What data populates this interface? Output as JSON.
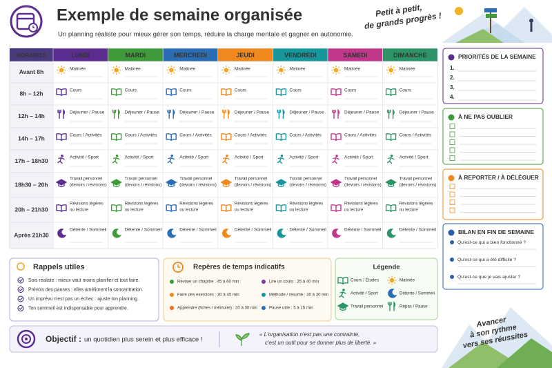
{
  "header": {
    "title": "Exemple de semaine organisée",
    "subtitle": "Un planning réaliste pour mieux gérer son temps, réduire la charge mentale et gagner en autonomie.",
    "slogan": [
      "Petit à petit,",
      "de grands progrès !"
    ]
  },
  "schedule": {
    "corner": "HORAIRES",
    "days": [
      {
        "name": "LUNDI",
        "color": "#5c2d91"
      },
      {
        "name": "MARDI",
        "color": "#3f9b3a"
      },
      {
        "name": "MERCREDI",
        "color": "#2b6db5"
      },
      {
        "name": "JEUDI",
        "color": "#f0891d"
      },
      {
        "name": "VENDREDI",
        "color": "#17979c"
      },
      {
        "name": "SAMEDI",
        "color": "#c1378b"
      },
      {
        "name": "DIMANCHE",
        "color": "#2c9467"
      }
    ],
    "rows": [
      {
        "time": "Avant 8h",
        "icon": "sun",
        "cells": [
          "Matinée",
          "Matinée",
          "Matinée",
          "Matinée",
          "Matinée",
          "Matinée",
          "Matinée"
        ]
      },
      {
        "time": "8h – 12h",
        "icon": "book",
        "cells": [
          "Cours",
          "Cours",
          "Cours",
          "Cours",
          "Cours",
          "Cours",
          "Cours"
        ]
      },
      {
        "time": "12h – 14h",
        "icon": "fork",
        "cells": [
          "Déjeuner / Pause",
          "Déjeuner / Pause",
          "Déjeuner / Pause",
          "Déjeuner / Pause",
          "Déjeuner / Pause",
          "Déjeuner / Pause",
          "Déjeuner / Pause"
        ]
      },
      {
        "time": "14h – 17h",
        "icon": "book",
        "cells": [
          "Cours / Activités",
          "Cours / Activités",
          "Cours / Activités",
          "Cours / Activités",
          "Cours / Activités",
          "Cours / Activités",
          "Cours / Activités"
        ]
      },
      {
        "time": "17h – 18h30",
        "icon": "runner",
        "cells": [
          "Activité / Sport",
          "Activité / Sport",
          "Activité / Sport",
          "Activité / Sport",
          "Activité / Sport",
          "Activité / Sport",
          "Activité / Sport"
        ]
      },
      {
        "time": "18h30 – 20h",
        "icon": "cap",
        "cells": [
          [
            "Travail personnel",
            "(devoirs / révisions)"
          ],
          [
            "Travail personnel",
            "(devoirs / révisions)"
          ],
          [
            "Travail personnel",
            "(devoirs / révisions)"
          ],
          [
            "Travail personnel",
            "(devoirs / révisions)"
          ],
          [
            "Travail personnel",
            "(devoirs / révisions)"
          ],
          [
            "Travail personnel",
            "(devoirs / révisions)"
          ],
          [
            "Travail personnel",
            "(devoirs / révisions)"
          ]
        ]
      },
      {
        "time": "20h – 21h30",
        "icon": "book",
        "cells": [
          [
            "Révisions légères",
            "ou lecture"
          ],
          [
            "Révisions légères",
            "ou lecture"
          ],
          [
            "Révisions légères",
            "ou lecture"
          ],
          [
            "Révisions légères",
            "ou lecture"
          ],
          [
            "Révisions légères",
            "ou lecture"
          ],
          [
            "Révisions légères",
            "ou lecture"
          ],
          [
            "Révisions légères",
            "ou lecture"
          ]
        ]
      },
      {
        "time": "Après 21h30",
        "icon": "moon",
        "cells": [
          "Détente / Sommeil",
          "Détente / Sommeil",
          "Détente / Sommeil",
          "Détente / Sommeil",
          "Détente / Sommeil",
          "Détente / Sommeil",
          "Détente / Sommeil"
        ]
      }
    ]
  },
  "sidebar": {
    "priorities": {
      "title": "PRIORITÉS DE LA SEMAINE",
      "items": [
        "1.",
        "2.",
        "3.",
        "4."
      ],
      "color": "#5c2d91"
    },
    "remember": {
      "title": "À NE PAS OUBLIER",
      "color": "#3f9b3a"
    },
    "postpone": {
      "title": "À REPORTER / À DÉLÉGUER",
      "color": "#f0891d"
    },
    "review": {
      "title": "BILAN EN FIN DE SEMAINE",
      "color": "#2b5fa8",
      "questions": [
        "Qu'est-ce qui a bien fonctionné ?",
        "Qu'est-ce qui a été difficile ?",
        "Qu'est-ce que je vais ajuster ?"
      ]
    }
  },
  "reminders": {
    "title": "Rappels utiles",
    "items": [
      "Sois réaliste : mieux vaut moins planifier et tout faire.",
      "Prévois des pauses : elles améliorent la concentration.",
      "Un imprévu n'est pas un échec : ajuste ton planning.",
      "Ton sommeil est indispensable pour apprendre."
    ]
  },
  "benchmarks": {
    "title": "Repères de temps indicatifs",
    "items": [
      {
        "text": "Réviser un chapitre : 45 à 60 min",
        "color": "#3f9b3a"
      },
      {
        "text": "Lire un cours : 25 à 40 min",
        "color": "#7a3aa8"
      },
      {
        "text": "Faire des exercices : 30 à 45 min",
        "color": "#f0891d"
      },
      {
        "text": "Méthode / résumé : 20 à 30 min",
        "color": "#17979c"
      },
      {
        "text": "Apprendre (fiches / mémoire) : 20 à 30 min",
        "color": "#f06a1d"
      },
      {
        "text": "Pause utile : 5 à 15 min",
        "color": "#2b6db5"
      }
    ]
  },
  "legend": {
    "title": "Légende",
    "items": [
      {
        "icon": "book",
        "label": "Cours / Études",
        "color": "#2c9467"
      },
      {
        "icon": "sun",
        "label": "Matinée",
        "color": "#f5a623"
      },
      {
        "icon": "runner",
        "label": "Activité / Sport",
        "color": "#2c9467"
      },
      {
        "icon": "moon",
        "label": "Détente / Sommeil",
        "color": "#2b6db5"
      },
      {
        "icon": "cap",
        "label": "Travail personnel",
        "color": "#2c9467"
      },
      {
        "icon": "fork",
        "label": "Repas / Pause",
        "color": "#2c9467"
      }
    ]
  },
  "objective": {
    "label": "Objectif :",
    "text": "un quotidien plus serein et plus efficace !",
    "quote": [
      "« L'organisation n'est pas une contrainte,",
      "c'est un outil pour se donner plus de liberté. »"
    ]
  },
  "motto": [
    "Avancer",
    "à son rythme",
    "vers ses réussites"
  ]
}
